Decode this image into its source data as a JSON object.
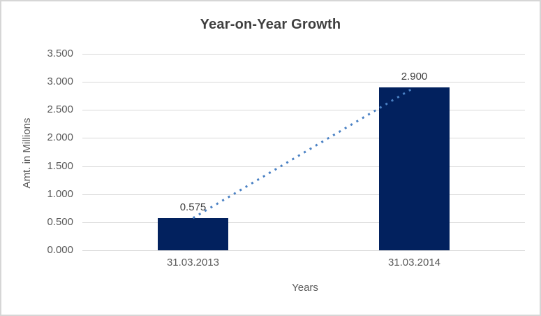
{
  "chart_data": {
    "type": "bar",
    "title": "Year-on-Year Growth",
    "xlabel": "Years",
    "ylabel": "Amt. in Millions",
    "categories": [
      "31.03.2013",
      "31.03.2014"
    ],
    "values": [
      0.575,
      2.9
    ],
    "data_labels": [
      "0.575",
      "2.900"
    ],
    "ytick_labels": [
      "0.000",
      "0.500",
      "1.000",
      "1.500",
      "2.000",
      "2.500",
      "3.000",
      "3.500"
    ],
    "ylim": [
      0,
      3.5
    ],
    "ytick_step": 0.5,
    "grid": true,
    "legend": "none",
    "trendline": {
      "style": "dotted",
      "color": "#4a81c4",
      "from_value": 0.575,
      "to_value": 2.9
    },
    "colors": {
      "bar": "#02215e",
      "gridline": "#d9d9d9",
      "axis_text": "#595959",
      "title_text": "#3f3f3f",
      "data_label_text": "#404040",
      "border": "#d6d6d6",
      "background": "#ffffff"
    }
  }
}
